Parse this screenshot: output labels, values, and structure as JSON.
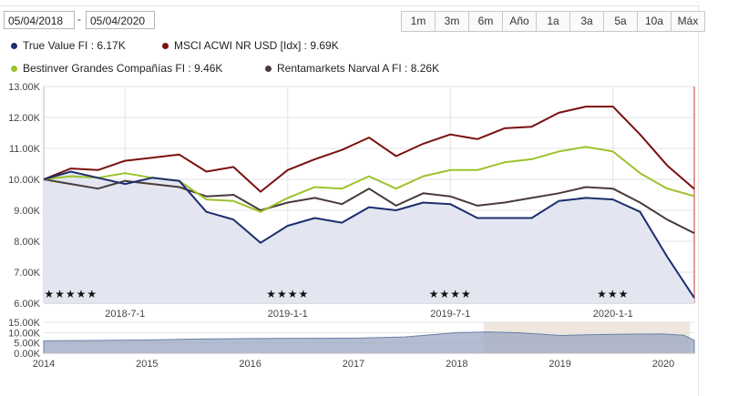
{
  "controls": {
    "date_from": "05/04/2018",
    "date_separator": "-",
    "date_to": "05/04/2020",
    "ranges": [
      "1m",
      "3m",
      "6m",
      "Año",
      "1a",
      "3a",
      "5a",
      "10a",
      "Máx"
    ]
  },
  "chart_data": [
    {
      "type": "line",
      "title": "",
      "x": [
        "2018-04",
        "2018-05",
        "2018-06",
        "2018-07",
        "2018-08",
        "2018-09",
        "2018-10",
        "2018-11",
        "2018-12",
        "2019-01",
        "2019-02",
        "2019-03",
        "2019-04",
        "2019-05",
        "2019-06",
        "2019-07",
        "2019-08",
        "2019-09",
        "2019-10",
        "2019-11",
        "2019-12",
        "2020-01",
        "2020-02",
        "2020-03",
        "2020-04"
      ],
      "x_ticks": [
        "2018-7-1",
        "2019-1-1",
        "2019-7-1",
        "2020-1-1"
      ],
      "x_tick_positions": [
        "2018-07",
        "2019-01",
        "2019-07",
        "2020-01"
      ],
      "ylim": [
        6000,
        13000
      ],
      "y_ticks": [
        "6.00K",
        "7.00K",
        "8.00K",
        "9.00K",
        "10.00K",
        "11.00K",
        "12.00K",
        "13.00K"
      ],
      "series": [
        {
          "name": "True Value FI",
          "legend": "True Value FI : 6.17K",
          "color": "#1c2e6e",
          "filled": true,
          "values": [
            10000,
            10250,
            10050,
            9850,
            10050,
            9950,
            8950,
            8700,
            7950,
            8500,
            8750,
            8600,
            9100,
            9000,
            9250,
            9200,
            8750,
            8750,
            8750,
            9300,
            9400,
            9350,
            8950,
            7500,
            6170
          ]
        },
        {
          "name": "MSCI ACWI NR USD [Idx]",
          "legend": "MSCI ACWI NR USD [Idx] : 9.69K",
          "color": "#7a1010",
          "filled": false,
          "values": [
            10000,
            10350,
            10300,
            10600,
            10700,
            10800,
            10250,
            10400,
            9600,
            10300,
            10650,
            10950,
            11350,
            10750,
            11150,
            11450,
            11300,
            11650,
            11700,
            12150,
            12350,
            12350,
            11450,
            10450,
            9690
          ]
        },
        {
          "name": "Bestinver Grandes Compañías FI",
          "legend": "Bestinver Grandes Compañías FI : 9.46K",
          "color": "#9dc22b",
          "filled": false,
          "values": [
            10000,
            10100,
            10050,
            10200,
            10050,
            9950,
            9350,
            9300,
            8950,
            9400,
            9750,
            9700,
            10100,
            9700,
            10100,
            10300,
            10300,
            10550,
            10650,
            10900,
            11050,
            10900,
            10200,
            9700,
            9460
          ]
        },
        {
          "name": "Rentamarkets Narval A FI",
          "legend": "Rentamarkets Narval A FI : 8.26K",
          "color": "#4a3b3b",
          "filled": false,
          "values": [
            10000,
            9850,
            9700,
            9950,
            9850,
            9750,
            9450,
            9500,
            9000,
            9250,
            9400,
            9200,
            9700,
            9150,
            9550,
            9450,
            9150,
            9250,
            9400,
            9550,
            9750,
            9700,
            9250,
            8700,
            8260
          ]
        }
      ],
      "annotations": [
        {
          "text": "★★★★★",
          "x": "2018-05"
        },
        {
          "text": "★★★★",
          "x": "2019-01"
        },
        {
          "text": "★★★★",
          "x": "2019-07"
        },
        {
          "text": "★★★",
          "x": "2020-01"
        }
      ]
    },
    {
      "type": "area",
      "title": "navigator",
      "x": [
        2014.0,
        2014.5,
        2015.0,
        2015.5,
        2016.0,
        2016.5,
        2017.0,
        2017.5,
        2018.0,
        2018.3,
        2018.6,
        2019.0,
        2019.3,
        2019.6,
        2020.0,
        2020.2,
        2020.3
      ],
      "values": [
        6000,
        6200,
        6400,
        6900,
        7100,
        7200,
        7300,
        7900,
        10000,
        10300,
        9900,
        8600,
        9000,
        9200,
        9300,
        8700,
        6200
      ],
      "ylim": [
        0,
        15000
      ],
      "y_ticks": [
        "0.00K",
        "5.00K",
        "10.00K",
        "15.00K"
      ],
      "x_ticks": [
        "2014",
        "2015",
        "2016",
        "2017",
        "2018",
        "2019",
        "2020"
      ],
      "selected_range": [
        2018.26,
        2020.26
      ],
      "color": "#6b7fa8"
    }
  ]
}
